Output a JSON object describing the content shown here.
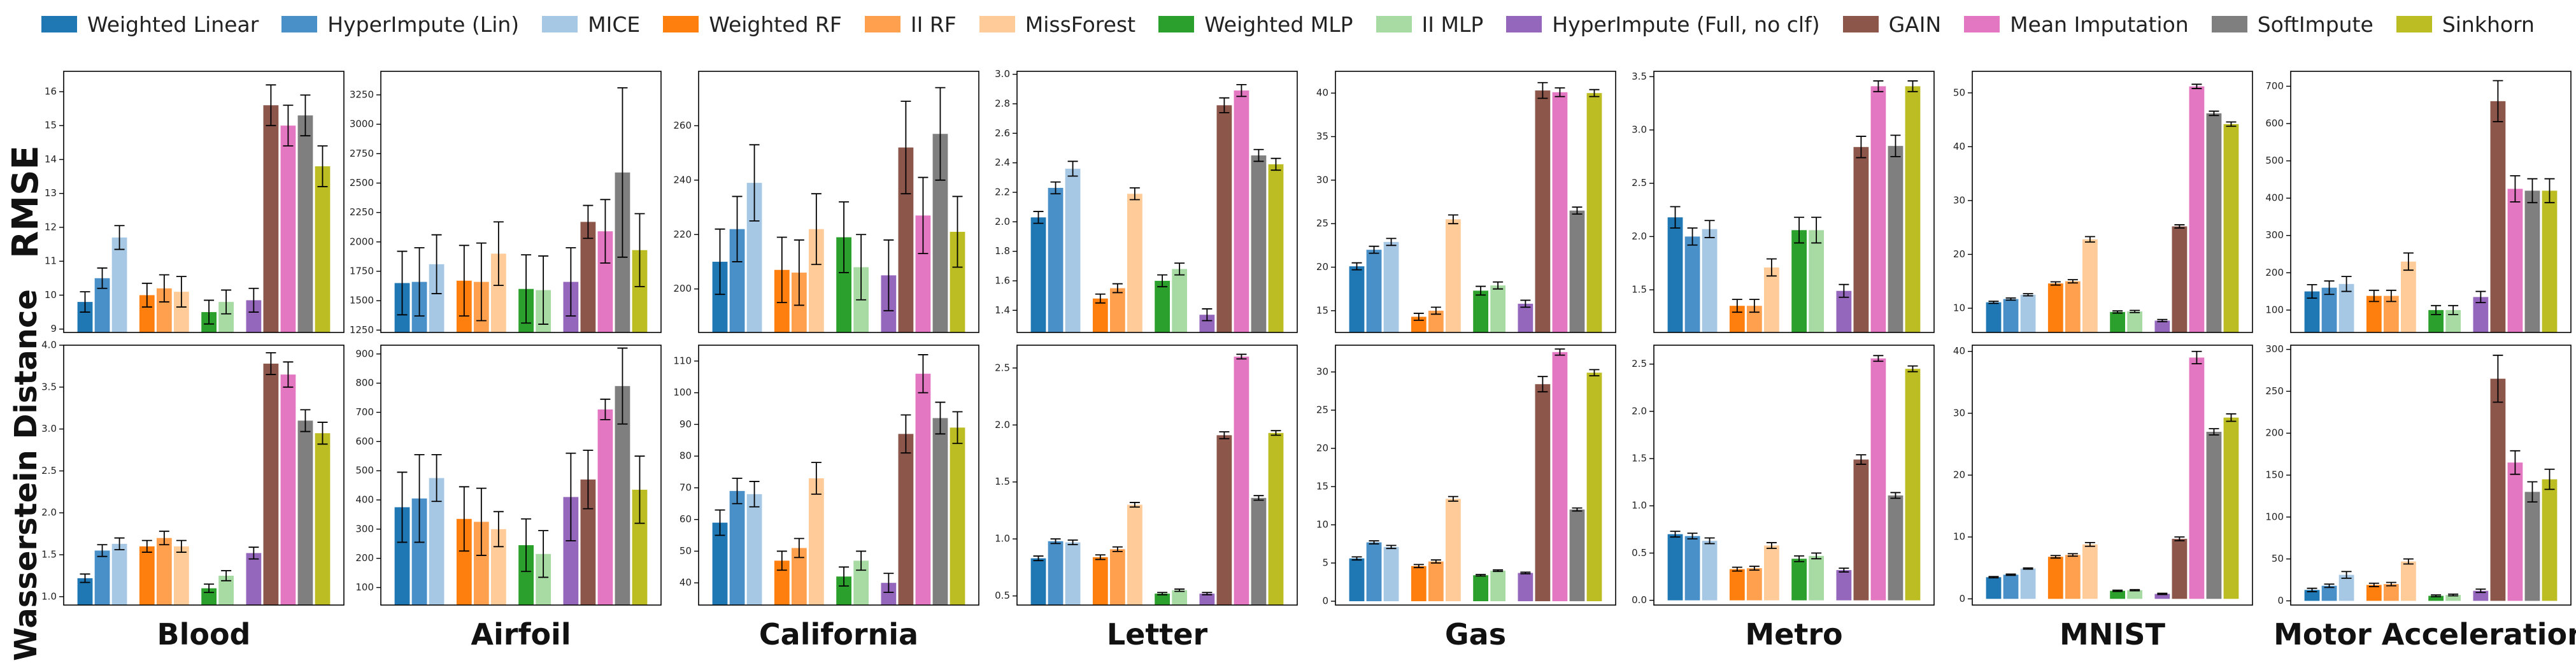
{
  "chart_data": {
    "type": "bar",
    "rows": [
      {
        "key": "rmse",
        "label": "RMSE"
      },
      {
        "key": "wd",
        "label": "Wasserstein Distance"
      }
    ],
    "series": [
      {
        "name": "Weighted Linear",
        "color": "#1f77b4",
        "group": 0
      },
      {
        "name": "HyperImpute (Lin)",
        "color": "#4a90c8",
        "group": 0
      },
      {
        "name": "MICE",
        "color": "#a6c8e4",
        "group": 0
      },
      {
        "name": "Weighted RF",
        "color": "#ff7f0e",
        "group": 1
      },
      {
        "name": "II RF",
        "color": "#ffa04f",
        "group": 1
      },
      {
        "name": "MissForest",
        "color": "#ffcc99",
        "group": 1
      },
      {
        "name": "Weighted MLP",
        "color": "#2ca02c",
        "group": 2
      },
      {
        "name": "II MLP",
        "color": "#a8dba3",
        "group": 2
      },
      {
        "name": "HyperImpute (Full, no clf)",
        "color": "#9467bd",
        "group": 3
      },
      {
        "name": "GAIN",
        "color": "#8c564b",
        "group": 3
      },
      {
        "name": "Mean Imputation",
        "color": "#e377c2",
        "group": 3
      },
      {
        "name": "SoftImpute",
        "color": "#7f7f7f",
        "group": 3
      },
      {
        "name": "Sinkhorn",
        "color": "#bcbd22",
        "group": 3
      }
    ],
    "datasets": [
      {
        "name": "Blood",
        "rmse": {
          "ylim": [
            8.9,
            16.6
          ],
          "ticks": [
            9,
            10,
            11,
            12,
            13,
            14,
            15,
            16
          ],
          "values": [
            9.8,
            10.5,
            11.7,
            10.0,
            10.2,
            10.1,
            9.5,
            9.8,
            9.85,
            15.6,
            15.0,
            15.3,
            13.8
          ],
          "errors": [
            0.3,
            0.3,
            0.35,
            0.35,
            0.4,
            0.45,
            0.35,
            0.35,
            0.35,
            0.6,
            0.6,
            0.6,
            0.6
          ]
        },
        "wd": {
          "ylim": [
            0.9,
            4.0
          ],
          "ticks": [
            1.0,
            1.5,
            2.0,
            2.5,
            3.0,
            3.5,
            4.0
          ],
          "values": [
            1.22,
            1.55,
            1.63,
            1.6,
            1.7,
            1.6,
            1.1,
            1.25,
            1.52,
            3.78,
            3.65,
            3.1,
            2.95
          ],
          "errors": [
            0.05,
            0.07,
            0.07,
            0.07,
            0.08,
            0.07,
            0.05,
            0.06,
            0.07,
            0.13,
            0.15,
            0.13,
            0.13
          ]
        }
      },
      {
        "name": "Airfoil",
        "rmse": {
          "ylim": [
            1230,
            3450
          ],
          "ticks": [
            1250,
            1500,
            1750,
            2000,
            2250,
            2500,
            2750,
            3000,
            3250
          ],
          "values": [
            1650,
            1660,
            1810,
            1670,
            1660,
            1900,
            1600,
            1590,
            1660,
            2170,
            2090,
            2590,
            1930
          ],
          "errors": [
            270,
            290,
            250,
            300,
            330,
            270,
            290,
            290,
            290,
            140,
            270,
            720,
            310
          ]
        },
        "wd": {
          "ylim": [
            40,
            930
          ],
          "ticks": [
            100,
            200,
            300,
            400,
            500,
            600,
            700,
            800,
            900
          ],
          "values": [
            375,
            405,
            475,
            335,
            325,
            300,
            245,
            215,
            410,
            470,
            710,
            790,
            435
          ],
          "errors": [
            120,
            150,
            80,
            110,
            115,
            60,
            90,
            80,
            150,
            100,
            35,
            130,
            115
          ]
        }
      },
      {
        "name": "California",
        "rmse": {
          "ylim": [
            184,
            280
          ],
          "ticks": [
            200,
            220,
            240,
            260
          ],
          "values": [
            210,
            222,
            239,
            207,
            206,
            222,
            219,
            208,
            205,
            252,
            227,
            257,
            221
          ],
          "errors": [
            12,
            12,
            14,
            12,
            12,
            13,
            13,
            12,
            13,
            17,
            14,
            17,
            13
          ]
        },
        "wd": {
          "ylim": [
            33,
            115
          ],
          "ticks": [
            40,
            50,
            60,
            70,
            80,
            90,
            100,
            110
          ],
          "values": [
            59,
            69,
            68,
            47,
            51,
            73,
            42,
            47,
            40,
            87,
            106,
            92,
            89
          ],
          "errors": [
            4,
            4,
            4,
            3,
            3,
            5,
            3,
            3,
            3,
            6,
            6,
            5,
            5
          ]
        }
      },
      {
        "name": "Letter",
        "rmse": {
          "ylim": [
            1.25,
            3.02
          ],
          "ticks": [
            1.4,
            1.6,
            1.8,
            2.0,
            2.2,
            2.4,
            2.6,
            2.8,
            3.0
          ],
          "values": [
            2.03,
            2.23,
            2.36,
            1.48,
            1.55,
            2.19,
            1.6,
            1.68,
            1.37,
            2.79,
            2.89,
            2.45,
            2.39
          ],
          "errors": [
            0.04,
            0.04,
            0.05,
            0.03,
            0.03,
            0.04,
            0.04,
            0.04,
            0.04,
            0.05,
            0.04,
            0.04,
            0.04
          ]
        },
        "wd": {
          "ylim": [
            0.42,
            2.7
          ],
          "ticks": [
            0.5,
            1.0,
            1.5,
            2.0,
            2.5
          ],
          "values": [
            0.83,
            0.98,
            0.97,
            0.84,
            0.91,
            1.3,
            0.52,
            0.55,
            0.52,
            1.91,
            2.6,
            1.36,
            1.93
          ],
          "errors": [
            0.02,
            0.02,
            0.02,
            0.02,
            0.02,
            0.02,
            0.01,
            0.01,
            0.01,
            0.03,
            0.02,
            0.02,
            0.02
          ]
        }
      },
      {
        "name": "Gas",
        "rmse": {
          "ylim": [
            12.5,
            42.5
          ],
          "ticks": [
            15,
            20,
            25,
            30,
            35,
            40
          ],
          "values": [
            20.1,
            22.0,
            22.9,
            14.3,
            15.0,
            25.5,
            17.3,
            17.9,
            15.8,
            40.3,
            40.1,
            26.5,
            40.0
          ],
          "errors": [
            0.4,
            0.4,
            0.4,
            0.4,
            0.4,
            0.5,
            0.5,
            0.4,
            0.4,
            0.9,
            0.5,
            0.4,
            0.4
          ]
        },
        "wd": {
          "ylim": [
            -0.5,
            33.5
          ],
          "ticks": [
            0,
            5,
            10,
            15,
            20,
            25,
            30
          ],
          "values": [
            5.6,
            7.7,
            7.1,
            4.6,
            5.2,
            13.4,
            3.4,
            4.0,
            3.7,
            28.4,
            32.6,
            12.0,
            29.9
          ],
          "errors": [
            0.2,
            0.2,
            0.2,
            0.2,
            0.2,
            0.3,
            0.1,
            0.1,
            0.1,
            1.0,
            0.4,
            0.2,
            0.4
          ]
        }
      },
      {
        "name": "Metro",
        "rmse": {
          "ylim": [
            1.1,
            3.55
          ],
          "ticks": [
            1.5,
            2.0,
            2.5,
            3.0,
            3.5
          ],
          "values": [
            2.18,
            2.0,
            2.07,
            1.35,
            1.35,
            1.71,
            2.06,
            2.06,
            1.49,
            2.84,
            3.41,
            2.85,
            3.41
          ],
          "errors": [
            0.1,
            0.08,
            0.08,
            0.06,
            0.06,
            0.08,
            0.12,
            0.12,
            0.06,
            0.1,
            0.05,
            0.1,
            0.05
          ]
        },
        "wd": {
          "ylim": [
            -0.05,
            2.7
          ],
          "ticks": [
            0.0,
            0.5,
            1.0,
            1.5,
            2.0,
            2.5
          ],
          "values": [
            0.7,
            0.68,
            0.63,
            0.33,
            0.34,
            0.58,
            0.44,
            0.47,
            0.32,
            1.49,
            2.56,
            1.11,
            2.45
          ],
          "errors": [
            0.03,
            0.03,
            0.03,
            0.02,
            0.02,
            0.03,
            0.03,
            0.03,
            0.02,
            0.05,
            0.03,
            0.03,
            0.03
          ]
        }
      },
      {
        "name": "MNIST",
        "rmse": {
          "ylim": [
            5.5,
            54
          ],
          "ticks": [
            10,
            20,
            30,
            40,
            50
          ],
          "values": [
            11.1,
            11.7,
            12.5,
            14.6,
            15.0,
            22.8,
            9.3,
            9.4,
            7.7,
            25.2,
            51.2,
            46.2,
            44.2
          ],
          "errors": [
            0.2,
            0.2,
            0.2,
            0.3,
            0.3,
            0.5,
            0.2,
            0.2,
            0.2,
            0.3,
            0.4,
            0.4,
            0.4
          ]
        },
        "wd": {
          "ylim": [
            -1,
            41
          ],
          "ticks": [
            0,
            10,
            20,
            30,
            40
          ],
          "values": [
            3.5,
            3.9,
            4.9,
            6.8,
            7.1,
            8.8,
            1.3,
            1.4,
            0.8,
            9.7,
            39.0,
            27.0,
            29.3
          ],
          "errors": [
            0.1,
            0.1,
            0.1,
            0.2,
            0.2,
            0.3,
            0.1,
            0.1,
            0.1,
            0.3,
            1.0,
            0.5,
            0.6
          ]
        }
      },
      {
        "name": "Motor Acceleration",
        "rmse": {
          "ylim": [
            40,
            740
          ],
          "ticks": [
            100,
            200,
            300,
            400,
            500,
            600,
            700
          ],
          "values": [
            150,
            160,
            170,
            138,
            138,
            230,
            100,
            100,
            135,
            660,
            425,
            420,
            420
          ],
          "errors": [
            18,
            18,
            20,
            15,
            15,
            23,
            12,
            12,
            15,
            55,
            35,
            32,
            32
          ]
        },
        "wd": {
          "ylim": [
            -5,
            305
          ],
          "ticks": [
            0,
            50,
            100,
            150,
            200,
            250,
            300
          ],
          "values": [
            13,
            18,
            31,
            19,
            20,
            47,
            6,
            7,
            12,
            265,
            165,
            130,
            145
          ],
          "errors": [
            2,
            2,
            4,
            2,
            2,
            3,
            1,
            1,
            2,
            28,
            14,
            12,
            12
          ]
        }
      }
    ]
  }
}
